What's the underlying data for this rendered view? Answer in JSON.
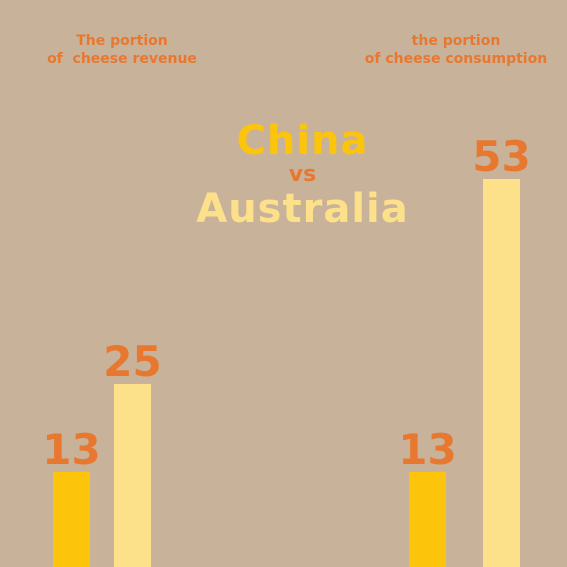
{
  "headline": {
    "line1": "China",
    "line2": "vs",
    "line3": "Australia"
  },
  "colors": {
    "background": "#c9b29a",
    "china": "#fcc40a",
    "australia": "#fde08a",
    "label": "#e8782f"
  },
  "chart_data": [
    {
      "type": "bar",
      "title": "The portion\nof  cheese revenue",
      "categories": [
        "China",
        "Australia"
      ],
      "values": [
        13,
        25
      ],
      "data_labels": [
        "13",
        "25"
      ],
      "ylim": [
        0,
        60
      ],
      "grid": false
    },
    {
      "type": "bar",
      "title": "the portion\nof cheese consumption",
      "categories": [
        "China",
        "Australia"
      ],
      "values": [
        13,
        53
      ],
      "data_labels": [
        "13",
        "53"
      ],
      "ylim": [
        0,
        60
      ],
      "grid": false
    }
  ]
}
